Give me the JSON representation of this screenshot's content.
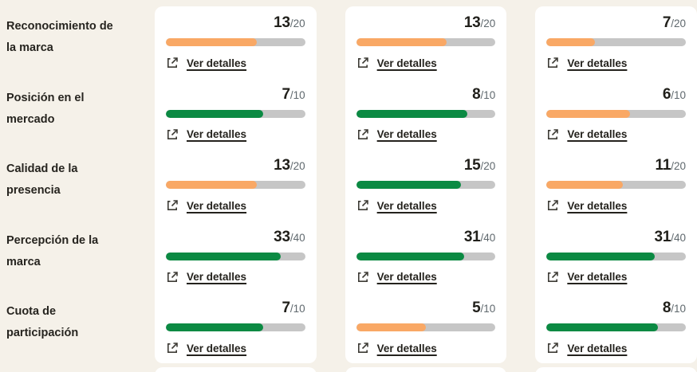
{
  "colors": {
    "background": "#f5f1e9",
    "card": "#ffffff",
    "track": "#c6c6c6",
    "orange": "#f9a865",
    "green": "#0b8a43",
    "text_dark": "#24221d",
    "text_muted": "#5f686d"
  },
  "link": {
    "label": "Ver detalles"
  },
  "columns_count": 3,
  "rows": [
    {
      "label": "Reconocimiento de la marca",
      "max": 20,
      "max_label": "/20",
      "cells": [
        {
          "value": 13,
          "color": "orange"
        },
        {
          "value": 13,
          "color": "orange"
        },
        {
          "value": 7,
          "color": "orange"
        }
      ]
    },
    {
      "label": "Posición en el mercado",
      "max": 10,
      "max_label": "/10",
      "cells": [
        {
          "value": 7,
          "color": "green"
        },
        {
          "value": 8,
          "color": "green"
        },
        {
          "value": 6,
          "color": "orange"
        }
      ]
    },
    {
      "label": "Calidad de la presencia",
      "max": 20,
      "max_label": "/20",
      "cells": [
        {
          "value": 13,
          "color": "orange"
        },
        {
          "value": 15,
          "color": "green"
        },
        {
          "value": 11,
          "color": "orange"
        }
      ]
    },
    {
      "label": "Percepción de la marca",
      "max": 40,
      "max_label": "/40",
      "cells": [
        {
          "value": 33,
          "color": "green"
        },
        {
          "value": 31,
          "color": "green"
        },
        {
          "value": 31,
          "color": "green"
        }
      ]
    },
    {
      "label": "Cuota de participación",
      "max": 10,
      "max_label": "/10",
      "cells": [
        {
          "value": 7,
          "color": "green"
        },
        {
          "value": 5,
          "color": "orange"
        },
        {
          "value": 8,
          "color": "green"
        }
      ]
    }
  ]
}
